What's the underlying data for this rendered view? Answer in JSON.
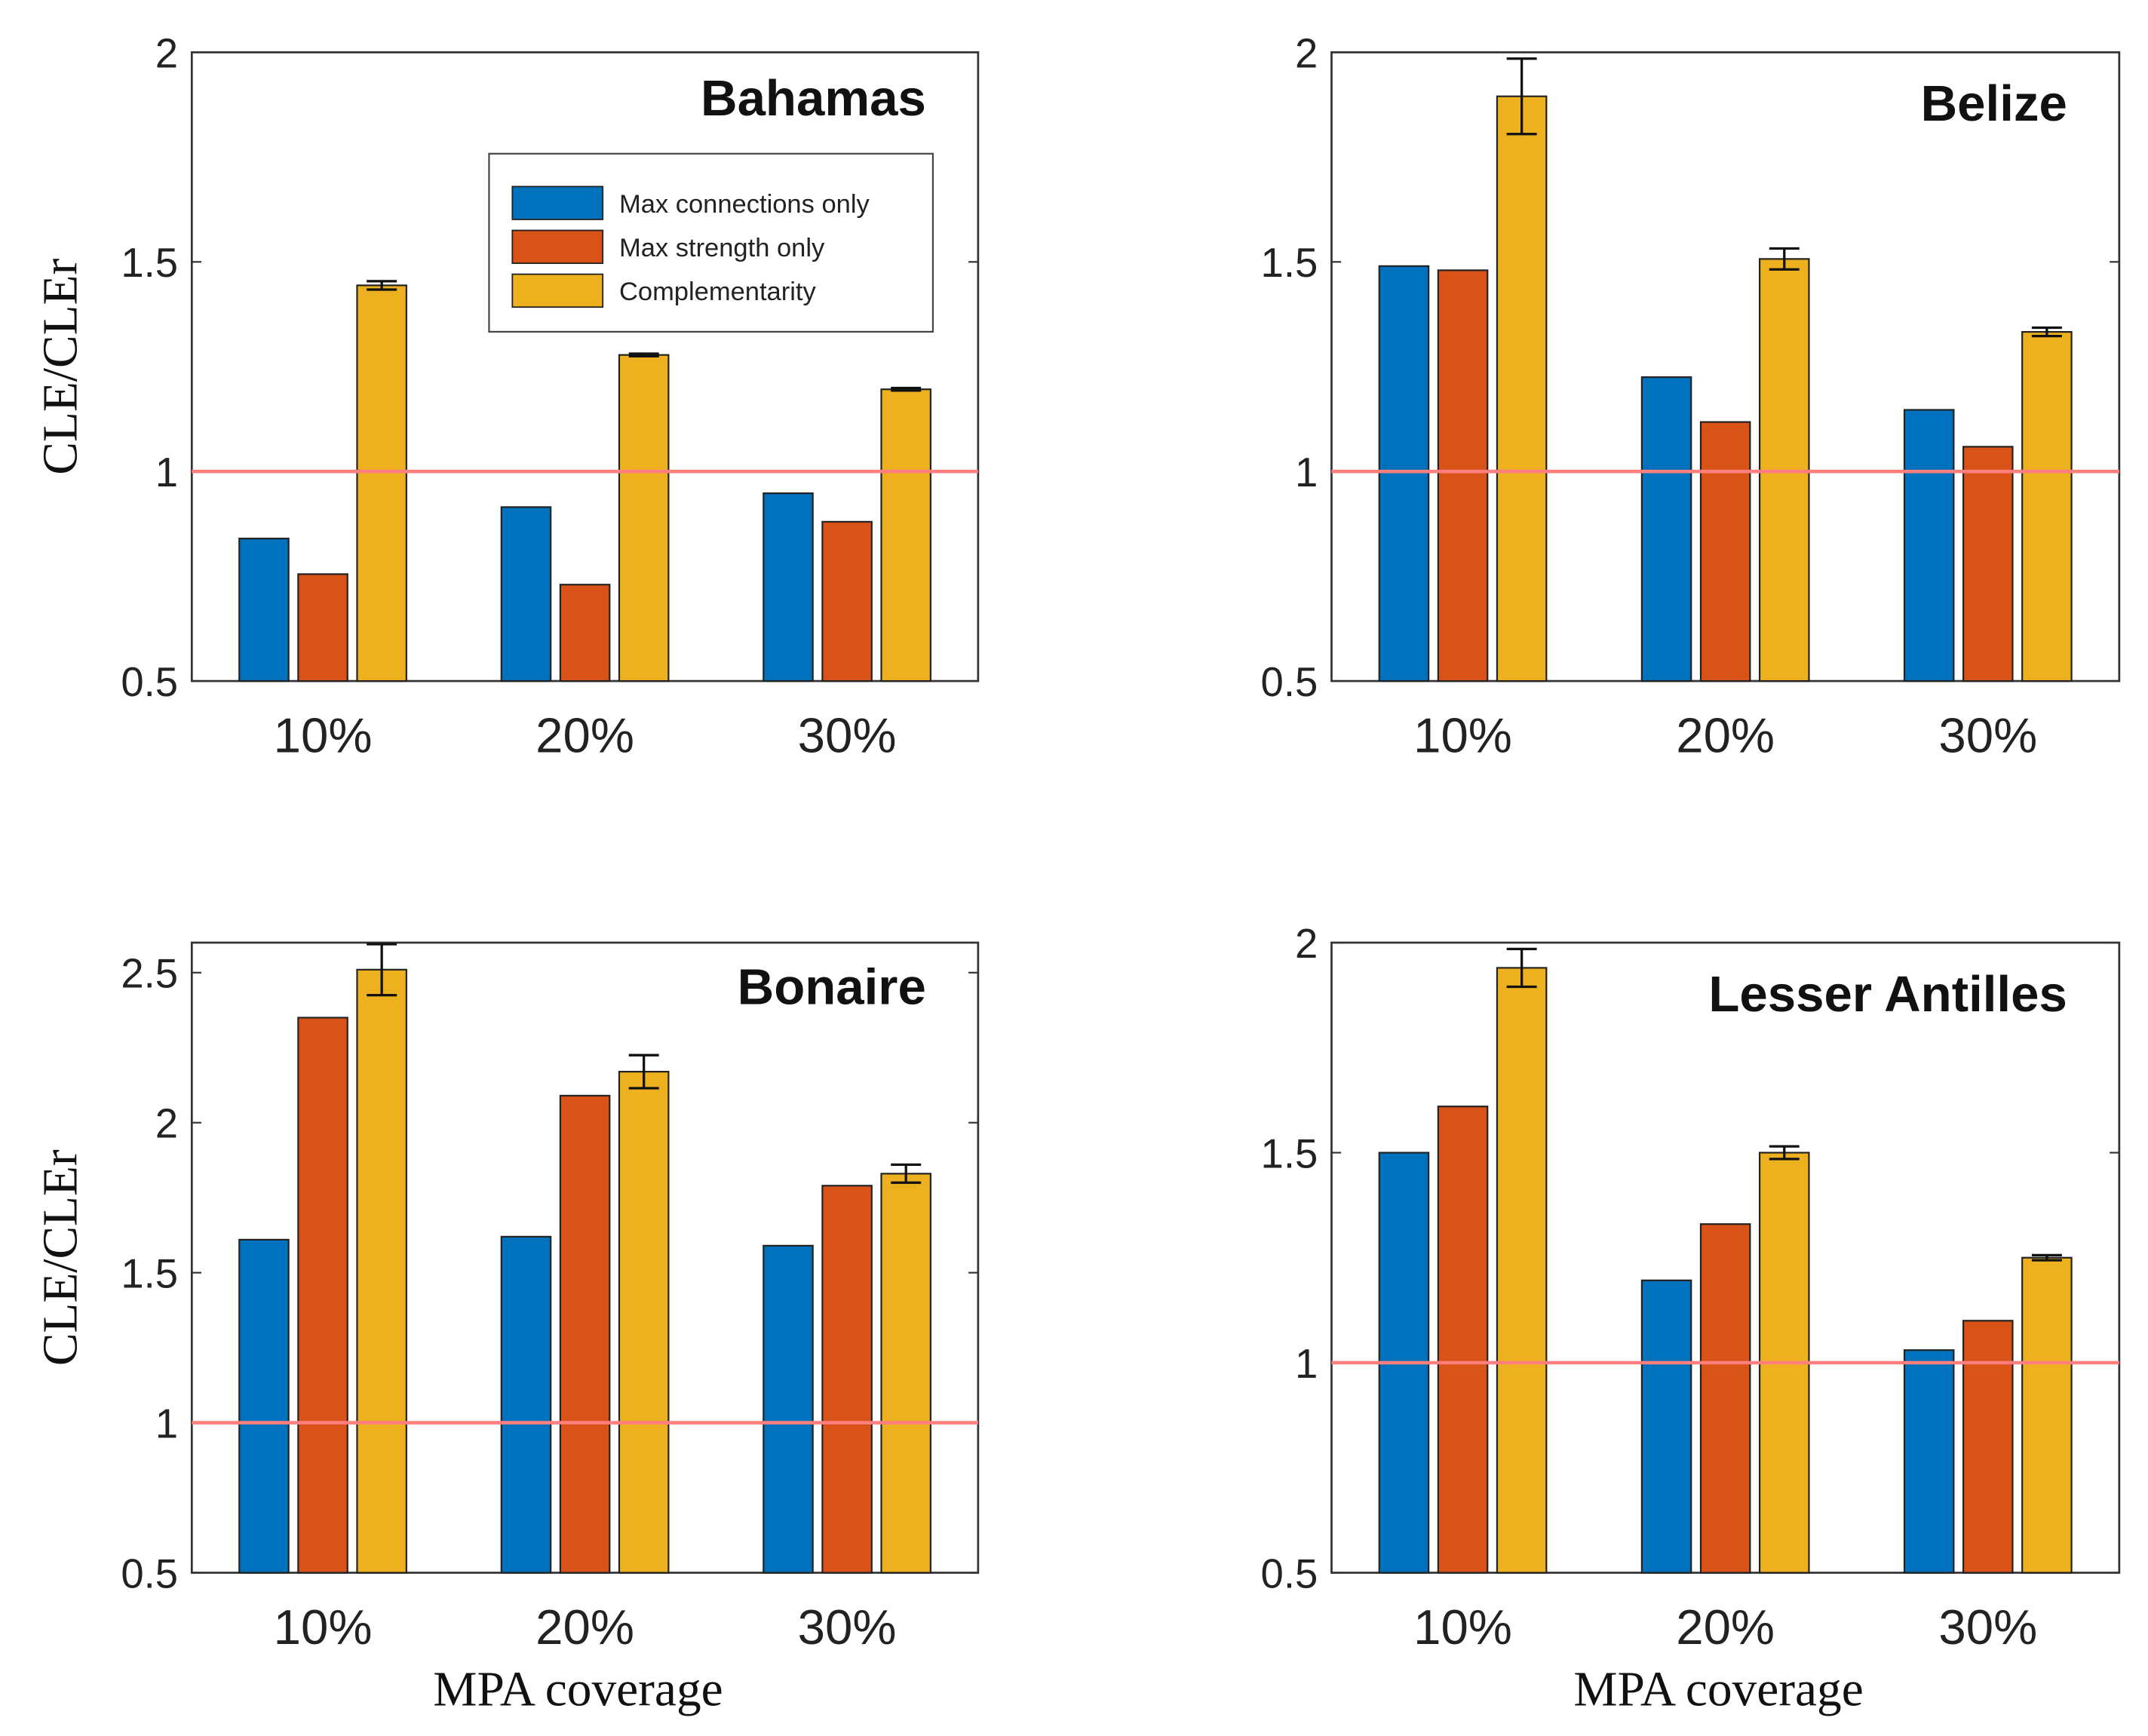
{
  "chart_data": [
    {
      "type": "bar",
      "title": "Bahamas",
      "xlabel": "",
      "ylabel": "CLE/CLEr",
      "categories": [
        "10%",
        "20%",
        "30%"
      ],
      "ylim": [
        0.5,
        2
      ],
      "yticks": [
        "0.5",
        "1",
        "1.5",
        "2"
      ],
      "reference_line": 1,
      "legend": {
        "placement": "top-right",
        "entries": [
          "Max connections only",
          "Max strength only",
          "Complementarity"
        ]
      },
      "series": [
        {
          "name": "Max connections only",
          "values": [
            0.84,
            0.915,
            0.948
          ]
        },
        {
          "name": "Max strength only",
          "values": [
            0.755,
            0.73,
            0.88
          ]
        },
        {
          "name": "Complementarity",
          "values": [
            1.444,
            1.278,
            1.196
          ],
          "error": [
            0.01,
            0.003,
            0.003
          ]
        }
      ]
    },
    {
      "type": "bar",
      "title": "Belize",
      "xlabel": "",
      "ylabel": "",
      "categories": [
        "10%",
        "20%",
        "30%"
      ],
      "ylim": [
        0.5,
        2
      ],
      "yticks": [
        "0.5",
        "1",
        "1.5",
        "2"
      ],
      "reference_line": 1,
      "series": [
        {
          "name": "Max connections only",
          "values": [
            1.49,
            1.225,
            1.147
          ]
        },
        {
          "name": "Max strength only",
          "values": [
            1.48,
            1.118,
            1.059
          ]
        },
        {
          "name": "Complementarity",
          "values": [
            1.895,
            1.507,
            1.333
          ],
          "error": [
            0.09,
            0.025,
            0.01
          ]
        }
      ]
    },
    {
      "type": "bar",
      "title": "Bonaire",
      "xlabel": "MPA coverage",
      "ylabel": "CLE/CLEr",
      "categories": [
        "10%",
        "20%",
        "30%"
      ],
      "ylim": [
        0.5,
        2.6
      ],
      "yticks": [
        "0.5",
        "1",
        "1.5",
        "2",
        "2.5"
      ],
      "reference_line": 1,
      "series": [
        {
          "name": "Max connections only",
          "values": [
            1.61,
            1.62,
            1.59
          ]
        },
        {
          "name": "Max strength only",
          "values": [
            2.35,
            2.09,
            1.79
          ]
        },
        {
          "name": "Complementarity",
          "values": [
            2.51,
            2.17,
            1.83
          ],
          "error": [
            0.085,
            0.055,
            0.03
          ]
        }
      ]
    },
    {
      "type": "bar",
      "title": "Lesser Antilles",
      "xlabel": "MPA coverage",
      "ylabel": "",
      "categories": [
        "10%",
        "20%",
        "30%"
      ],
      "ylim": [
        0.5,
        2
      ],
      "yticks": [
        "0.5",
        "1",
        "1.5",
        "2"
      ],
      "reference_line": 1,
      "series": [
        {
          "name": "Max connections only",
          "values": [
            1.5,
            1.196,
            1.03
          ]
        },
        {
          "name": "Max strength only",
          "values": [
            1.61,
            1.33,
            1.1
          ]
        },
        {
          "name": "Complementarity",
          "values": [
            1.94,
            1.5,
            1.25
          ],
          "error": [
            0.045,
            0.015,
            0.006
          ]
        }
      ]
    }
  ],
  "colors": {
    "series": [
      "#0072BD",
      "#D95319",
      "#EDB120"
    ],
    "reference_line": "#FF7F7F"
  }
}
